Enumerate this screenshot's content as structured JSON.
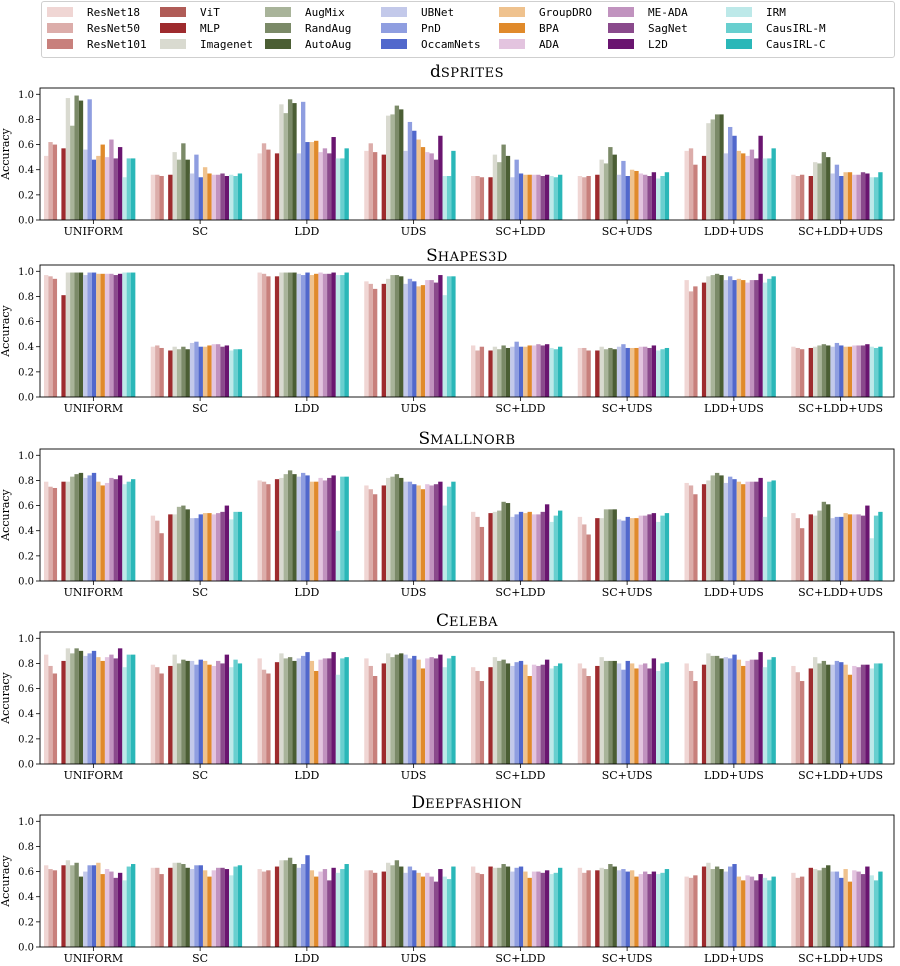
{
  "legend": {
    "entries": [
      {
        "name": "ResNet18",
        "color": "#f0d6d4"
      },
      {
        "name": "ResNet50",
        "color": "#dcadaa"
      },
      {
        "name": "ResNet101",
        "color": "#c8807c"
      },
      {
        "name": "ViT",
        "color": "#b05c57"
      },
      {
        "name": "MLP",
        "color": "#9e2b2e"
      },
      {
        "name": "Imagenet",
        "color": "#d9dad0"
      },
      {
        "name": "AugMix",
        "color": "#a9b49a"
      },
      {
        "name": "RandAug",
        "color": "#7b8a68"
      },
      {
        "name": "AutoAug",
        "color": "#4b5e34"
      },
      {
        "name": "UBNet",
        "color": "#c3c9ea"
      },
      {
        "name": "PnD",
        "color": "#8f9ee0"
      },
      {
        "name": "OccamNets",
        "color": "#5168cc"
      },
      {
        "name": "GroupDRO",
        "color": "#efc28e"
      },
      {
        "name": "BPA",
        "color": "#e08a2b"
      },
      {
        "name": "ADA",
        "color": "#e3c4df"
      },
      {
        "name": "ME-ADA",
        "color": "#c193bf"
      },
      {
        "name": "SagNet",
        "color": "#8a4a8c"
      },
      {
        "name": "L2D",
        "color": "#6a1570"
      },
      {
        "name": "IRM",
        "color": "#bde9e9"
      },
      {
        "name": "CausIRL-M",
        "color": "#68cfcf"
      },
      {
        "name": "CausIRL-C",
        "color": "#2ab7b8"
      }
    ]
  },
  "chart_data": [
    {
      "type": "bar",
      "title": "dSprites",
      "ylabel": "Accuracy",
      "ylim": [
        0,
        1.05
      ],
      "yticks": [
        "0.0",
        "0.2",
        "0.4",
        "0.6",
        "0.8",
        "1.0"
      ],
      "categories": [
        "UNIFORM",
        "SC",
        "LDD",
        "UDS",
        "SC+LDD",
        "SC+UDS",
        "LDD+UDS",
        "SC+LDD+UDS"
      ],
      "values": [
        [
          0.51,
          0.62,
          0.6,
          0.0,
          0.57,
          0.97,
          0.75,
          0.99,
          0.95,
          0.56,
          0.96,
          0.48,
          0.51,
          0.6,
          0.5,
          0.64,
          0.49,
          0.58,
          0.34,
          0.49,
          0.49
        ],
        [
          0.36,
          0.36,
          0.35,
          0.0,
          0.36,
          0.54,
          0.48,
          0.61,
          0.48,
          0.37,
          0.52,
          0.34,
          0.42,
          0.37,
          0.36,
          0.36,
          0.37,
          0.35,
          0.36,
          0.35,
          0.37
        ],
        [
          0.53,
          0.61,
          0.56,
          0.0,
          0.53,
          0.92,
          0.85,
          0.96,
          0.93,
          0.53,
          0.94,
          0.62,
          0.62,
          0.63,
          0.54,
          0.57,
          0.53,
          0.66,
          0.49,
          0.49,
          0.57
        ],
        [
          0.55,
          0.61,
          0.54,
          0.0,
          0.52,
          0.83,
          0.84,
          0.91,
          0.88,
          0.55,
          0.78,
          0.71,
          0.64,
          0.58,
          0.54,
          0.53,
          0.48,
          0.67,
          0.35,
          0.35,
          0.55
        ],
        [
          0.35,
          0.35,
          0.34,
          0.0,
          0.34,
          0.52,
          0.46,
          0.6,
          0.51,
          0.34,
          0.48,
          0.37,
          0.36,
          0.36,
          0.36,
          0.36,
          0.35,
          0.36,
          0.35,
          0.34,
          0.36
        ],
        [
          0.35,
          0.34,
          0.35,
          0.0,
          0.36,
          0.48,
          0.45,
          0.58,
          0.52,
          0.36,
          0.47,
          0.35,
          0.4,
          0.39,
          0.37,
          0.36,
          0.35,
          0.38,
          0.33,
          0.35,
          0.38
        ],
        [
          0.55,
          0.57,
          0.44,
          0.0,
          0.51,
          0.77,
          0.8,
          0.84,
          0.84,
          0.53,
          0.74,
          0.67,
          0.55,
          0.53,
          0.51,
          0.56,
          0.49,
          0.67,
          0.49,
          0.49,
          0.57
        ],
        [
          0.36,
          0.35,
          0.36,
          0.0,
          0.35,
          0.46,
          0.45,
          0.54,
          0.5,
          0.37,
          0.44,
          0.35,
          0.38,
          0.38,
          0.36,
          0.36,
          0.38,
          0.37,
          0.34,
          0.34,
          0.38
        ]
      ]
    },
    {
      "type": "bar",
      "title": "Shapes3D",
      "ylabel": "Accuracy",
      "ylim": [
        0,
        1.05
      ],
      "yticks": [
        "0.0",
        "0.2",
        "0.4",
        "0.6",
        "0.8",
        "1.0"
      ],
      "categories": [
        "UNIFORM",
        "SC",
        "LDD",
        "UDS",
        "SC+LDD",
        "SC+UDS",
        "LDD+UDS",
        "SC+LDD+UDS"
      ],
      "values": [
        [
          0.97,
          0.96,
          0.94,
          0.0,
          0.81,
          0.99,
          0.99,
          0.99,
          0.99,
          0.97,
          0.99,
          0.99,
          0.98,
          0.98,
          0.98,
          0.98,
          0.97,
          0.98,
          0.99,
          0.99,
          0.99
        ],
        [
          0.4,
          0.41,
          0.39,
          0.0,
          0.37,
          0.4,
          0.38,
          0.4,
          0.38,
          0.43,
          0.44,
          0.4,
          0.4,
          0.41,
          0.42,
          0.42,
          0.4,
          0.41,
          0.37,
          0.38,
          0.38
        ],
        [
          0.99,
          0.98,
          0.96,
          0.0,
          0.96,
          0.99,
          0.99,
          0.99,
          0.99,
          0.98,
          0.97,
          0.99,
          0.97,
          0.98,
          0.99,
          0.98,
          0.98,
          0.99,
          0.97,
          0.97,
          0.99
        ],
        [
          0.92,
          0.9,
          0.86,
          0.0,
          0.9,
          0.94,
          0.97,
          0.97,
          0.96,
          0.9,
          0.94,
          0.92,
          0.88,
          0.89,
          0.93,
          0.93,
          0.91,
          0.97,
          0.81,
          0.96,
          0.96
        ],
        [
          0.41,
          0.37,
          0.4,
          0.0,
          0.37,
          0.4,
          0.38,
          0.41,
          0.39,
          0.4,
          0.44,
          0.4,
          0.4,
          0.41,
          0.41,
          0.42,
          0.41,
          0.42,
          0.39,
          0.38,
          0.4
        ],
        [
          0.39,
          0.39,
          0.37,
          0.0,
          0.37,
          0.4,
          0.38,
          0.39,
          0.38,
          0.4,
          0.42,
          0.39,
          0.39,
          0.39,
          0.4,
          0.4,
          0.39,
          0.41,
          0.37,
          0.38,
          0.39
        ],
        [
          0.93,
          0.84,
          0.88,
          0.0,
          0.91,
          0.96,
          0.97,
          0.98,
          0.97,
          0.93,
          0.96,
          0.93,
          0.94,
          0.93,
          0.91,
          0.93,
          0.93,
          0.98,
          0.91,
          0.94,
          0.96
        ],
        [
          0.4,
          0.39,
          0.38,
          0.0,
          0.39,
          0.4,
          0.41,
          0.42,
          0.41,
          0.4,
          0.43,
          0.41,
          0.4,
          0.4,
          0.41,
          0.41,
          0.41,
          0.42,
          0.4,
          0.39,
          0.4
        ]
      ]
    },
    {
      "type": "bar",
      "title": "SmallNorb",
      "ylabel": "Accuracy",
      "ylim": [
        0,
        1.05
      ],
      "yticks": [
        "0.0",
        "0.2",
        "0.4",
        "0.6",
        "0.8",
        "1.0"
      ],
      "categories": [
        "UNIFORM",
        "SC",
        "LDD",
        "UDS",
        "SC+LDD",
        "SC+UDS",
        "LDD+UDS",
        "SC+LDD+UDS"
      ],
      "values": [
        [
          0.79,
          0.75,
          0.74,
          0.0,
          0.79,
          0.79,
          0.83,
          0.85,
          0.86,
          0.82,
          0.84,
          0.86,
          0.79,
          0.76,
          0.78,
          0.82,
          0.81,
          0.84,
          0.77,
          0.79,
          0.81
        ],
        [
          0.52,
          0.48,
          0.38,
          0.0,
          0.53,
          0.53,
          0.59,
          0.6,
          0.57,
          0.5,
          0.5,
          0.53,
          0.54,
          0.54,
          0.53,
          0.54,
          0.55,
          0.6,
          0.49,
          0.55,
          0.55
        ],
        [
          0.8,
          0.79,
          0.77,
          0.0,
          0.81,
          0.82,
          0.85,
          0.88,
          0.85,
          0.83,
          0.86,
          0.84,
          0.79,
          0.79,
          0.82,
          0.8,
          0.82,
          0.84,
          0.4,
          0.83,
          0.83
        ],
        [
          0.76,
          0.73,
          0.69,
          0.0,
          0.76,
          0.82,
          0.83,
          0.85,
          0.82,
          0.79,
          0.79,
          0.77,
          0.76,
          0.73,
          0.77,
          0.76,
          0.77,
          0.79,
          0.6,
          0.75,
          0.79
        ],
        [
          0.55,
          0.51,
          0.43,
          0.0,
          0.54,
          0.55,
          0.56,
          0.63,
          0.62,
          0.51,
          0.53,
          0.55,
          0.54,
          0.55,
          0.53,
          0.53,
          0.55,
          0.61,
          0.47,
          0.52,
          0.56
        ],
        [
          0.51,
          0.45,
          0.37,
          0.0,
          0.5,
          0.5,
          0.57,
          0.57,
          0.57,
          0.49,
          0.48,
          0.51,
          0.5,
          0.5,
          0.52,
          0.52,
          0.53,
          0.54,
          0.47,
          0.52,
          0.54
        ],
        [
          0.78,
          0.76,
          0.69,
          0.0,
          0.77,
          0.8,
          0.84,
          0.86,
          0.84,
          0.78,
          0.83,
          0.81,
          0.79,
          0.77,
          0.79,
          0.79,
          0.79,
          0.82,
          0.51,
          0.79,
          0.8
        ],
        [
          0.54,
          0.5,
          0.42,
          0.0,
          0.53,
          0.52,
          0.56,
          0.63,
          0.61,
          0.5,
          0.51,
          0.51,
          0.54,
          0.53,
          0.53,
          0.53,
          0.52,
          0.6,
          0.34,
          0.52,
          0.55
        ]
      ]
    },
    {
      "type": "bar",
      "title": "CelebA",
      "ylabel": "Accuracy",
      "ylim": [
        0,
        1.05
      ],
      "yticks": [
        "0.0",
        "0.2",
        "0.4",
        "0.6",
        "0.8",
        "1.0"
      ],
      "categories": [
        "UNIFORM",
        "SC",
        "LDD",
        "UDS",
        "SC+LDD",
        "SC+UDS",
        "LDD+UDS",
        "SC+LDD+UDS"
      ],
      "values": [
        [
          0.87,
          0.78,
          0.72,
          0.0,
          0.82,
          0.92,
          0.88,
          0.92,
          0.9,
          0.86,
          0.88,
          0.9,
          0.85,
          0.82,
          0.85,
          0.87,
          0.84,
          0.92,
          0.77,
          0.87,
          0.87
        ],
        [
          0.79,
          0.77,
          0.72,
          0.0,
          0.78,
          0.87,
          0.8,
          0.83,
          0.82,
          0.82,
          0.79,
          0.83,
          0.82,
          0.79,
          0.78,
          0.82,
          0.8,
          0.87,
          0.77,
          0.83,
          0.8
        ],
        [
          0.84,
          0.75,
          0.72,
          0.0,
          0.81,
          0.88,
          0.84,
          0.85,
          0.82,
          0.84,
          0.86,
          0.89,
          0.82,
          0.74,
          0.83,
          0.84,
          0.84,
          0.89,
          0.71,
          0.84,
          0.85
        ],
        [
          0.84,
          0.78,
          0.7,
          0.0,
          0.8,
          0.88,
          0.85,
          0.87,
          0.88,
          0.87,
          0.84,
          0.86,
          0.83,
          0.76,
          0.84,
          0.85,
          0.84,
          0.87,
          0.77,
          0.84,
          0.86
        ],
        [
          0.77,
          0.74,
          0.66,
          0.0,
          0.77,
          0.85,
          0.82,
          0.83,
          0.8,
          0.78,
          0.81,
          0.82,
          0.79,
          0.7,
          0.79,
          0.78,
          0.79,
          0.83,
          0.76,
          0.78,
          0.8
        ],
        [
          0.8,
          0.76,
          0.7,
          0.0,
          0.78,
          0.85,
          0.82,
          0.82,
          0.82,
          0.8,
          0.75,
          0.82,
          0.8,
          0.76,
          0.79,
          0.8,
          0.76,
          0.84,
          0.74,
          0.8,
          0.81
        ],
        [
          0.8,
          0.74,
          0.66,
          0.0,
          0.79,
          0.88,
          0.86,
          0.86,
          0.84,
          0.85,
          0.84,
          0.87,
          0.83,
          0.78,
          0.82,
          0.83,
          0.83,
          0.89,
          0.77,
          0.83,
          0.85
        ],
        [
          0.78,
          0.73,
          0.66,
          0.0,
          0.76,
          0.85,
          0.8,
          0.82,
          0.79,
          0.79,
          0.82,
          0.81,
          0.79,
          0.71,
          0.78,
          0.77,
          0.79,
          0.79,
          0.76,
          0.8,
          0.8
        ]
      ]
    },
    {
      "type": "bar",
      "title": "DeepFashion",
      "ylabel": "Accuracy",
      "ylim": [
        0,
        1.05
      ],
      "yticks": [
        "0.0",
        "0.2",
        "0.4",
        "0.6",
        "0.8",
        "1.0"
      ],
      "categories": [
        "UNIFORM",
        "SC",
        "LDD",
        "UDS",
        "SC+LDD",
        "SC+UDS",
        "LDD+UDS",
        "SC+LDD+UDS"
      ],
      "values": [
        [
          0.65,
          0.62,
          0.61,
          0.0,
          0.65,
          0.69,
          0.65,
          0.67,
          0.56,
          0.6,
          0.65,
          0.65,
          0.67,
          0.58,
          0.62,
          0.6,
          0.55,
          0.59,
          0.53,
          0.64,
          0.66
        ],
        [
          0.63,
          0.63,
          0.58,
          0.0,
          0.63,
          0.67,
          0.67,
          0.66,
          0.63,
          0.62,
          0.65,
          0.65,
          0.61,
          0.56,
          0.61,
          0.63,
          0.63,
          0.62,
          0.57,
          0.64,
          0.65
        ],
        [
          0.62,
          0.6,
          0.61,
          0.0,
          0.64,
          0.69,
          0.69,
          0.71,
          0.66,
          0.63,
          0.66,
          0.73,
          0.61,
          0.56,
          0.6,
          0.62,
          0.53,
          0.63,
          0.59,
          0.62,
          0.66
        ],
        [
          0.61,
          0.61,
          0.59,
          0.0,
          0.6,
          0.67,
          0.65,
          0.69,
          0.64,
          0.59,
          0.64,
          0.61,
          0.59,
          0.56,
          0.59,
          0.56,
          0.52,
          0.62,
          0.56,
          0.54,
          0.64
        ],
        [
          0.64,
          0.59,
          0.58,
          0.0,
          0.64,
          0.63,
          0.63,
          0.66,
          0.64,
          0.6,
          0.63,
          0.64,
          0.6,
          0.55,
          0.6,
          0.6,
          0.59,
          0.61,
          0.58,
          0.59,
          0.63
        ],
        [
          0.63,
          0.59,
          0.61,
          0.0,
          0.61,
          0.63,
          0.62,
          0.66,
          0.64,
          0.61,
          0.62,
          0.6,
          0.61,
          0.56,
          0.58,
          0.6,
          0.58,
          0.6,
          0.58,
          0.59,
          0.62
        ],
        [
          0.56,
          0.55,
          0.57,
          0.0,
          0.64,
          0.67,
          0.62,
          0.64,
          0.62,
          0.6,
          0.64,
          0.66,
          0.56,
          0.53,
          0.57,
          0.56,
          0.53,
          0.58,
          0.55,
          0.53,
          0.56
        ],
        [
          0.59,
          0.55,
          0.56,
          0.0,
          0.63,
          0.62,
          0.61,
          0.63,
          0.65,
          0.6,
          0.6,
          0.55,
          0.62,
          0.52,
          0.61,
          0.6,
          0.58,
          0.64,
          0.57,
          0.53,
          0.6
        ]
      ]
    }
  ]
}
